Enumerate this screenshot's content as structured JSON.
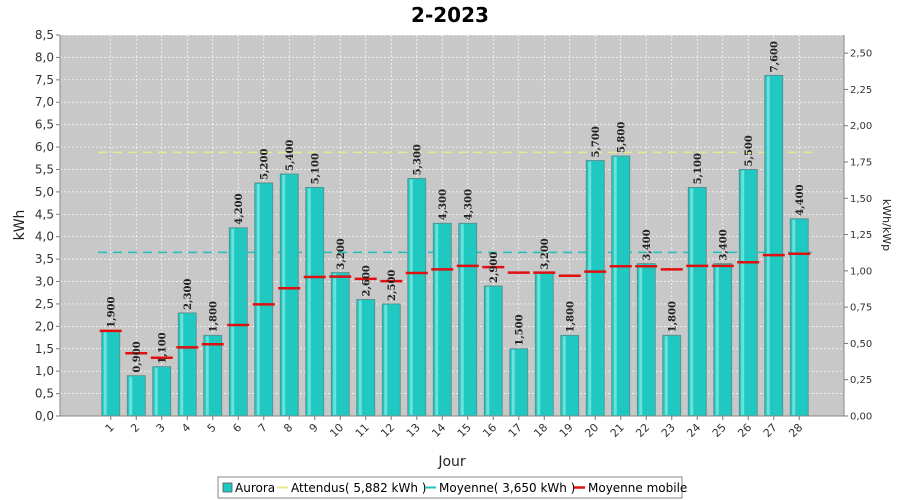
{
  "chart_data": {
    "type": "bar",
    "title": "2-2023",
    "xlabel": "Jour",
    "ylabel": "kWh",
    "ylabel_right": "kWh/kWp",
    "categories": [
      "1",
      "2",
      "3",
      "4",
      "5",
      "6",
      "7",
      "8",
      "9",
      "10",
      "11",
      "12",
      "13",
      "14",
      "15",
      "16",
      "17",
      "18",
      "19",
      "20",
      "21",
      "22",
      "23",
      "24",
      "25",
      "26",
      "27",
      "28"
    ],
    "series": [
      {
        "name": "Aurora",
        "values": [
          1.9,
          0.9,
          1.1,
          2.3,
          1.8,
          4.2,
          5.2,
          5.4,
          5.1,
          3.2,
          2.6,
          2.5,
          5.3,
          4.3,
          4.3,
          2.9,
          1.5,
          3.2,
          1.8,
          5.7,
          5.8,
          3.4,
          1.8,
          5.1,
          3.4,
          5.5,
          7.6,
          4.4
        ],
        "labels": [
          "1,900",
          "0,900",
          "1,100",
          "2,300",
          "1,800",
          "4,200",
          "5,200",
          "5,400",
          "5,100",
          "3,200",
          "2,600",
          "2,500",
          "5,300",
          "4,300",
          "4,300",
          "2,900",
          "1,500",
          "3,200",
          "1,800",
          "5,700",
          "5,800",
          "3,400",
          "1,800",
          "5,100",
          "3,400",
          "5,500",
          "7,600",
          "4,400"
        ],
        "color": "#1fc8c0"
      },
      {
        "name": "Moyenne mobile",
        "values": [
          1.9,
          1.4,
          1.3,
          1.53,
          1.6,
          2.03,
          2.49,
          2.85,
          3.1,
          3.11,
          3.06,
          3.01,
          3.19,
          3.27,
          3.35,
          3.32,
          3.2,
          3.2,
          3.13,
          3.22,
          3.34,
          3.34,
          3.27,
          3.35,
          3.35,
          3.43,
          3.59,
          3.62
        ],
        "color": "#e01010"
      }
    ],
    "reference_lines": [
      {
        "name": "Attendus",
        "legend": "Attendus( 5,882 kWh )",
        "value": 5.882,
        "color": "#e8e890"
      },
      {
        "name": "Moyenne",
        "legend": "Moyenne( 3,650 kWh )",
        "value": 3.65,
        "color": "#20c0c0"
      }
    ],
    "legend": [
      "Aurora",
      "Attendus( 5,882 kWh )",
      "Moyenne( 3,650 kWh )",
      "Moyenne mobile"
    ],
    "legend_position": "bottom",
    "ylim": [
      0,
      8.5
    ],
    "yticks": [
      "0,0",
      "0,5",
      "1,0",
      "1,5",
      "2,0",
      "2,5",
      "3,0",
      "3,5",
      "4,0",
      "4,5",
      "5,0",
      "5,5",
      "6,0",
      "6,5",
      "7,0",
      "7,5",
      "8,0",
      "8,5"
    ],
    "ylim_right": [
      0,
      2.625
    ],
    "yticks_right": [
      "0,00",
      "0,25",
      "0,50",
      "0,75",
      "1,00",
      "1,25",
      "1,50",
      "1,75",
      "2,00",
      "2,25",
      "2,50"
    ],
    "grid": true,
    "background": "#c8c8c8"
  }
}
